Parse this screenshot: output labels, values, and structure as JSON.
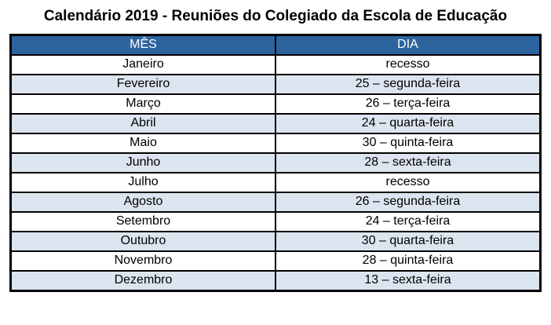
{
  "title": "Calendário 2019 - Reuniões do Colegiado da Escola de Educação",
  "table": {
    "headers": {
      "mes": "MÊS",
      "dia": "DIA"
    },
    "rows": [
      {
        "mes": "Janeiro",
        "dia": "recesso"
      },
      {
        "mes": "Fevereiro",
        "dia": "25 – segunda-feira"
      },
      {
        "mes": "Março",
        "dia": "26 – terça-feira"
      },
      {
        "mes": "Abril",
        "dia": "24 – quarta-feira"
      },
      {
        "mes": "Maio",
        "dia": "30 – quinta-feira"
      },
      {
        "mes": "Junho",
        "dia": "28 – sexta-feira"
      },
      {
        "mes": "Julho",
        "dia": "recesso"
      },
      {
        "mes": "Agosto",
        "dia": "26 – segunda-feira"
      },
      {
        "mes": "Setembro",
        "dia": "24 – terça-feira"
      },
      {
        "mes": "Outubro",
        "dia": "30 – quarta-feira"
      },
      {
        "mes": "Novembro",
        "dia": "28 – quinta-feira"
      },
      {
        "mes": "Dezembro",
        "dia": "13 – sexta-feira"
      }
    ]
  },
  "colors": {
    "header_bg": "#2D649E",
    "header_text": "#FFFFFF",
    "row_alt_bg": "#DCE4EF",
    "border": "#000000"
  }
}
